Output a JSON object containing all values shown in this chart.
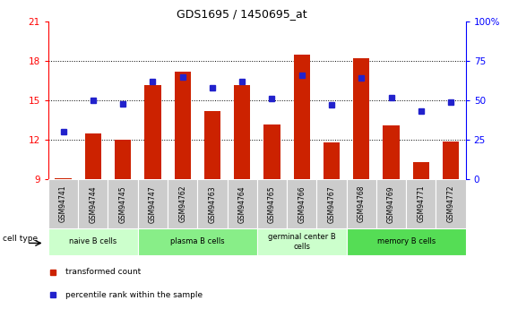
{
  "title": "GDS1695 / 1450695_at",
  "samples": [
    "GSM94741",
    "GSM94744",
    "GSM94745",
    "GSM94747",
    "GSM94762",
    "GSM94763",
    "GSM94764",
    "GSM94765",
    "GSM94766",
    "GSM94767",
    "GSM94768",
    "GSM94769",
    "GSM94771",
    "GSM94772"
  ],
  "transformed_counts": [
    9.1,
    12.5,
    12.0,
    16.2,
    17.2,
    14.2,
    16.2,
    13.2,
    18.5,
    11.8,
    18.2,
    13.1,
    10.3,
    11.9
  ],
  "percentile_ranks": [
    30,
    50,
    48,
    62,
    65,
    58,
    62,
    51,
    66,
    47,
    64,
    52,
    43,
    49
  ],
  "ylim_left": [
    9,
    21
  ],
  "ylim_right": [
    0,
    100
  ],
  "yticks_left": [
    9,
    12,
    15,
    18,
    21
  ],
  "yticks_right": [
    0,
    25,
    50,
    75,
    100
  ],
  "bar_color": "#cc2200",
  "dot_color": "#2222cc",
  "background_color": "#ffffff",
  "cell_types": [
    {
      "label": "naive B cells",
      "start": 0,
      "end": 3,
      "color": "#ccffcc"
    },
    {
      "label": "plasma B cells",
      "start": 3,
      "end": 7,
      "color": "#88ee88"
    },
    {
      "label": "germinal center B\ncells",
      "start": 7,
      "end": 10,
      "color": "#ccffcc"
    },
    {
      "label": "memory B cells",
      "start": 10,
      "end": 14,
      "color": "#55dd55"
    }
  ],
  "legend_items": [
    {
      "label": "transformed count",
      "color": "#cc2200"
    },
    {
      "label": "percentile rank within the sample",
      "color": "#2222cc"
    }
  ],
  "grid_yticks": [
    12,
    15,
    18
  ]
}
